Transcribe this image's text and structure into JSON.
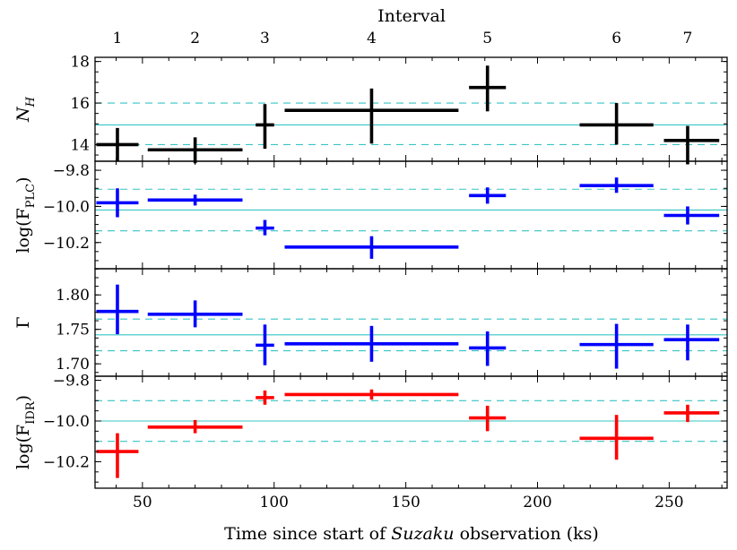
{
  "chart_data": {
    "type": "errorbar-scatter",
    "layout": "4 vertically stacked panels sharing the x axis",
    "xlabel": "Time since start of Suzaku observation (ks)",
    "xlabel_parts": [
      "Time since start of ",
      "Suzaku",
      " observation (ks)"
    ],
    "xlim": [
      32,
      272
    ],
    "xticks": [
      50,
      100,
      150,
      200,
      250
    ],
    "top_axis": {
      "title": "Interval",
      "labels": [
        {
          "label": "1",
          "x": 40.5
        },
        {
          "label": "2",
          "x": 70
        },
        {
          "label": "3",
          "x": 96.5
        },
        {
          "label": "4",
          "x": 137
        },
        {
          "label": "5",
          "x": 181
        },
        {
          "label": "6",
          "x": 230
        },
        {
          "label": "7",
          "x": 257
        }
      ]
    },
    "panels": [
      {
        "id": "nh",
        "ylabel_main": "N",
        "ylabel_sub": "H",
        "color": "#000000",
        "ylim": [
          13.2,
          18.2
        ],
        "yticks": [
          14,
          16,
          18
        ],
        "ref_lines": {
          "mean": 14.95,
          "lower": 14.0,
          "upper": 16.0
        },
        "points": [
          {
            "x": 40.5,
            "x_lo": 32.5,
            "x_hi": 48.5,
            "y": 14.0,
            "y_lo": 13.2,
            "y_hi": 14.8
          },
          {
            "x": 70,
            "x_lo": 52,
            "x_hi": 88,
            "y": 13.75,
            "y_lo": 13.1,
            "y_hi": 14.35
          },
          {
            "x": 96.5,
            "x_lo": 93,
            "x_hi": 100,
            "y": 14.95,
            "y_lo": 13.8,
            "y_hi": 15.95
          },
          {
            "x": 137,
            "x_lo": 104,
            "x_hi": 170,
            "y": 15.65,
            "y_lo": 14.05,
            "y_hi": 16.7
          },
          {
            "x": 181,
            "x_lo": 174,
            "x_hi": 188,
            "y": 16.75,
            "y_lo": 15.6,
            "y_hi": 17.8
          },
          {
            "x": 230,
            "x_lo": 216,
            "x_hi": 244,
            "y": 14.95,
            "y_lo": 14.0,
            "y_hi": 16.0
          },
          {
            "x": 257,
            "x_lo": 248,
            "x_hi": 269,
            "y": 14.2,
            "y_lo": 13.05,
            "y_hi": 14.9
          }
        ]
      },
      {
        "id": "fplc",
        "ylabel_main": "log(F",
        "ylabel_sub": "PLC",
        "ylabel_end": ")",
        "color": "#0000ff",
        "ylim": [
          -10.345,
          -9.75
        ],
        "yticks": [
          -9.8,
          -10.0,
          -10.2
        ],
        "ytick_labels": [
          "−9.8",
          "−10.0",
          "−10.2"
        ],
        "ref_lines": {
          "mean": -10.02,
          "lower": -10.135,
          "upper": -9.905
        },
        "points": [
          {
            "x": 40.5,
            "x_lo": 32.5,
            "x_hi": 48.5,
            "y": -9.98,
            "y_lo": -10.06,
            "y_hi": -9.9
          },
          {
            "x": 70,
            "x_lo": 52,
            "x_hi": 88,
            "y": -9.965,
            "y_lo": -9.995,
            "y_hi": -9.935
          },
          {
            "x": 96.5,
            "x_lo": 93,
            "x_hi": 100,
            "y": -10.12,
            "y_lo": -10.16,
            "y_hi": -10.075
          },
          {
            "x": 137,
            "x_lo": 104,
            "x_hi": 170,
            "y": -10.225,
            "y_lo": -10.29,
            "y_hi": -10.165
          },
          {
            "x": 181,
            "x_lo": 174,
            "x_hi": 188,
            "y": -9.94,
            "y_lo": -9.985,
            "y_hi": -9.895
          },
          {
            "x": 230,
            "x_lo": 216,
            "x_hi": 244,
            "y": -9.885,
            "y_lo": -9.925,
            "y_hi": -9.84
          },
          {
            "x": 257,
            "x_lo": 248,
            "x_hi": 269,
            "y": -10.05,
            "y_lo": -10.1,
            "y_hi": -10.0
          }
        ]
      },
      {
        "id": "gamma",
        "ylabel_main": "Γ",
        "color": "#0000ff",
        "ylim": [
          1.682,
          1.838
        ],
        "yticks": [
          1.7,
          1.75,
          1.8
        ],
        "ytick_labels": [
          "1.70",
          "1.75",
          "1.80"
        ],
        "ref_lines": {
          "mean": 1.742,
          "lower": 1.719,
          "upper": 1.765
        },
        "points": [
          {
            "x": 40.5,
            "x_lo": 32.5,
            "x_hi": 48.5,
            "y": 1.776,
            "y_lo": 1.743,
            "y_hi": 1.815
          },
          {
            "x": 70,
            "x_lo": 52,
            "x_hi": 88,
            "y": 1.772,
            "y_lo": 1.753,
            "y_hi": 1.792
          },
          {
            "x": 96.5,
            "x_lo": 93,
            "x_hi": 100,
            "y": 1.727,
            "y_lo": 1.698,
            "y_hi": 1.757
          },
          {
            "x": 137,
            "x_lo": 104,
            "x_hi": 170,
            "y": 1.729,
            "y_lo": 1.703,
            "y_hi": 1.755
          },
          {
            "x": 181,
            "x_lo": 174,
            "x_hi": 188,
            "y": 1.723,
            "y_lo": 1.697,
            "y_hi": 1.747
          },
          {
            "x": 230,
            "x_lo": 216,
            "x_hi": 244,
            "y": 1.728,
            "y_lo": 1.693,
            "y_hi": 1.758
          },
          {
            "x": 257,
            "x_lo": 248,
            "x_hi": 269,
            "y": 1.735,
            "y_lo": 1.705,
            "y_hi": 1.757
          }
        ]
      },
      {
        "id": "fidr",
        "ylabel_main": "log(F",
        "ylabel_sub": "IDR",
        "ylabel_end": ")",
        "color": "#ff0000",
        "ylim": [
          -10.33,
          -9.78
        ],
        "yticks": [
          -9.8,
          -10.0,
          -10.2
        ],
        "ytick_labels": [
          "−9.8",
          "−10.0",
          "−10.2"
        ],
        "ref_lines": {
          "mean": -10.0,
          "lower": -10.1,
          "upper": -9.9
        },
        "points": [
          {
            "x": 40.5,
            "x_lo": 32.5,
            "x_hi": 48.5,
            "y": -10.15,
            "y_lo": -10.28,
            "y_hi": -10.06
          },
          {
            "x": 70,
            "x_lo": 52,
            "x_hi": 88,
            "y": -10.03,
            "y_lo": -10.06,
            "y_hi": -9.995
          },
          {
            "x": 96.5,
            "x_lo": 93,
            "x_hi": 100,
            "y": -9.885,
            "y_lo": -9.92,
            "y_hi": -9.85
          },
          {
            "x": 137,
            "x_lo": 104,
            "x_hi": 170,
            "y": -9.87,
            "y_lo": -9.895,
            "y_hi": -9.845
          },
          {
            "x": 181,
            "x_lo": 174,
            "x_hi": 188,
            "y": -9.985,
            "y_lo": -10.05,
            "y_hi": -9.925
          },
          {
            "x": 230,
            "x_lo": 216,
            "x_hi": 244,
            "y": -10.085,
            "y_lo": -10.19,
            "y_hi": -9.97
          },
          {
            "x": 257,
            "x_lo": 248,
            "x_hi": 269,
            "y": -9.96,
            "y_lo": -10.005,
            "y_hi": -9.92
          }
        ]
      }
    ],
    "ref_line_color": "#37c4c4"
  }
}
